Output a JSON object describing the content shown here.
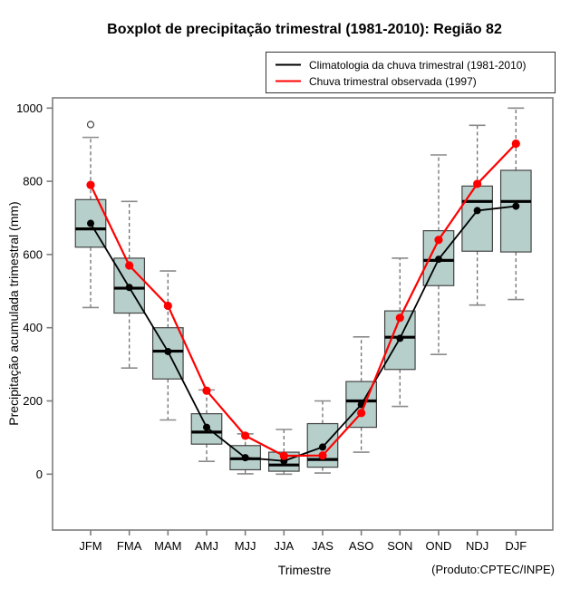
{
  "title": "Boxplot de precipitação trimestral (1981-2010): Região 82",
  "footer_note": "(Produto:CPTEC/INPE)",
  "chart_data": {
    "type": "boxplot",
    "title": "Boxplot de precipitação trimestral (1981-2010): Região 82",
    "xlabel": "Trimestre",
    "ylabel": "Precipitação acumulada trimestral (mm)",
    "categories": [
      "JFM",
      "FMA",
      "MAM",
      "AMJ",
      "MJJ",
      "JJA",
      "JAS",
      "ASO",
      "SON",
      "OND",
      "NDJ",
      "DJF"
    ],
    "yticks": [
      0,
      200,
      400,
      600,
      800,
      1000
    ],
    "ylim": [
      -152,
      1028
    ],
    "grid": false,
    "legend_position": "top-right",
    "box_fill": "#b6cfca",
    "box_border": "#444444",
    "whisker_color": "#6f6f6f",
    "boxes": [
      {
        "category": "JFM",
        "min": 455,
        "q1": 620,
        "median": 670,
        "q3": 750,
        "max": 920,
        "outliers": [
          955
        ]
      },
      {
        "category": "FMA",
        "min": 290,
        "q1": 440,
        "median": 508,
        "q3": 590,
        "max": 745,
        "outliers": []
      },
      {
        "category": "MAM",
        "min": 148,
        "q1": 260,
        "median": 336,
        "q3": 400,
        "max": 555,
        "outliers": []
      },
      {
        "category": "AMJ",
        "min": 35,
        "q1": 82,
        "median": 115,
        "q3": 165,
        "max": 230,
        "outliers": []
      },
      {
        "category": "MJJ",
        "min": 1,
        "q1": 12,
        "median": 42,
        "q3": 78,
        "max": 110,
        "outliers": []
      },
      {
        "category": "JJA",
        "min": 0,
        "q1": 8,
        "median": 25,
        "q3": 60,
        "max": 122,
        "outliers": []
      },
      {
        "category": "JAS",
        "min": 3,
        "q1": 19,
        "median": 40,
        "q3": 138,
        "max": 200,
        "outliers": []
      },
      {
        "category": "ASO",
        "min": 60,
        "q1": 128,
        "median": 200,
        "q3": 253,
        "max": 375,
        "outliers": []
      },
      {
        "category": "SON",
        "min": 185,
        "q1": 286,
        "median": 374,
        "q3": 446,
        "max": 590,
        "outliers": []
      },
      {
        "category": "OND",
        "min": 327,
        "q1": 515,
        "median": 584,
        "q3": 665,
        "max": 872,
        "outliers": []
      },
      {
        "category": "NDJ",
        "min": 462,
        "q1": 609,
        "median": 745,
        "q3": 787,
        "max": 953,
        "outliers": []
      },
      {
        "category": "DJF",
        "min": 477,
        "q1": 607,
        "median": 745,
        "q3": 830,
        "max": 1000,
        "outliers": []
      }
    ],
    "series": [
      {
        "name": "Climatologia da chuva trimestral (1981-2010)",
        "color": "#000000",
        "marker": "filled-circle",
        "values": [
          685,
          510,
          335,
          128,
          45,
          36,
          74,
          190,
          371,
          587,
          720,
          732
        ]
      },
      {
        "name": "Chuva trimestral observada (1997)",
        "color": "#ff0000",
        "marker": "filled-circle",
        "values": [
          790,
          570,
          460,
          228,
          105,
          50,
          51,
          167,
          427,
          640,
          793,
          903
        ]
      }
    ]
  }
}
